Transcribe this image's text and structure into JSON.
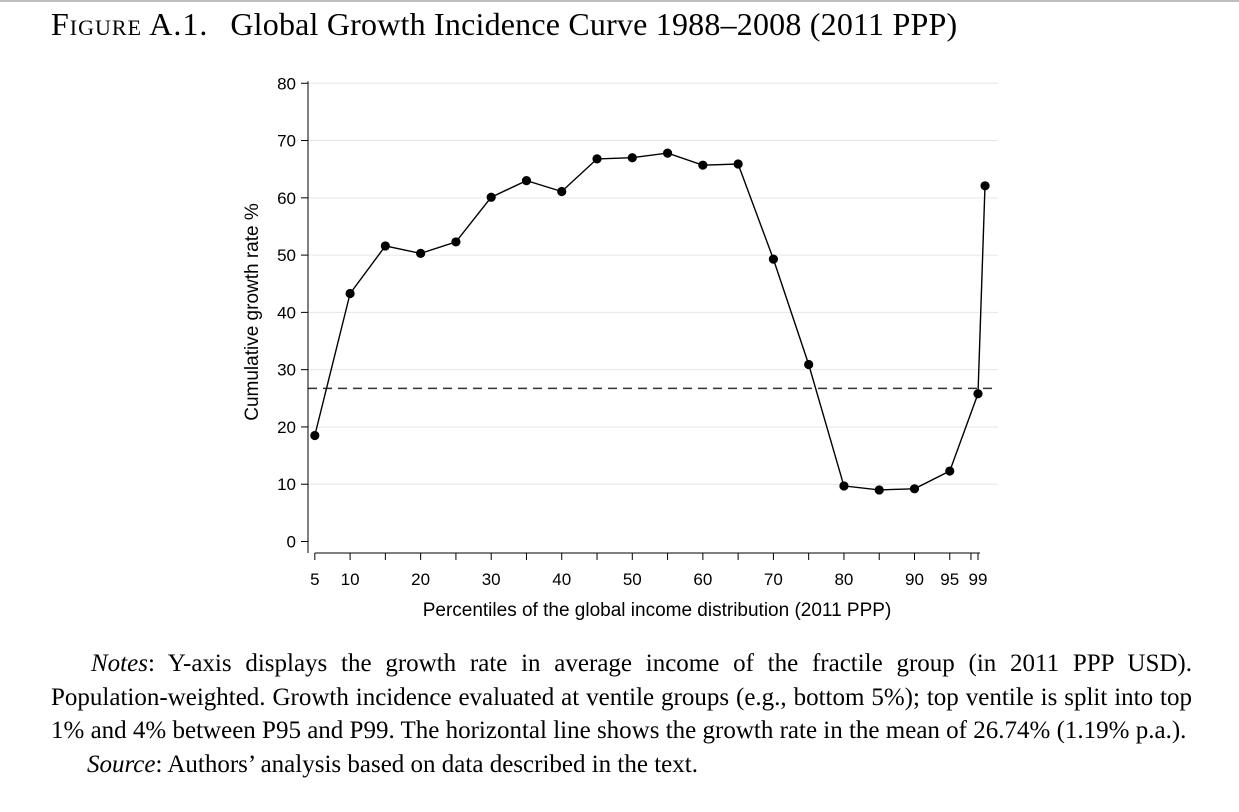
{
  "figure": {
    "label": "Figure A.1.",
    "title": "Global Growth Incidence Curve 1988–2008 (2011 PPP)"
  },
  "chart_data": {
    "type": "line",
    "xlabel": "Percentiles of the global income distribution (2011 PPP)",
    "ylabel": "Cumulative growth rate %",
    "xlim": [
      5,
      99
    ],
    "ylim": [
      0,
      80
    ],
    "x_ticks": [
      5,
      10,
      20,
      30,
      40,
      50,
      60,
      70,
      80,
      90,
      95,
      99
    ],
    "x_minor_ticks": [
      15,
      25,
      35,
      45,
      55,
      65,
      75,
      85,
      98
    ],
    "y_ticks": [
      0,
      10,
      20,
      30,
      40,
      50,
      60,
      70,
      80
    ],
    "grid": "horizontal",
    "markers": true,
    "series": [
      {
        "x": [
          5,
          10,
          15,
          20,
          25,
          30,
          35,
          40,
          45,
          50,
          55,
          60,
          65,
          70,
          75,
          80,
          85,
          90,
          95,
          99,
          100
        ],
        "y": [
          18.5,
          43.3,
          51.6,
          50.3,
          52.3,
          60.1,
          63.0,
          61.1,
          66.8,
          67.0,
          67.8,
          65.7,
          65.9,
          49.3,
          30.9,
          9.7,
          9.0,
          9.2,
          12.3,
          25.8,
          62.1
        ]
      }
    ],
    "reference_line": {
      "y": 26.74,
      "style": "dashed"
    }
  },
  "notes": {
    "notes_label": "Notes",
    "notes_text": ": Y-axis displays the growth rate in average income of the fractile group (in 2011 PPP USD). Population-weighted. Growth incidence evaluated at ventile groups (e.g., bottom 5%); top ventile is split into top 1% and 4% between P95 and P99. The horizontal line shows the growth rate in the mean of 26.74% (1.19% p.a.).",
    "source_label": "Source",
    "source_text": ": Authors’ analysis based on data described in the text."
  }
}
